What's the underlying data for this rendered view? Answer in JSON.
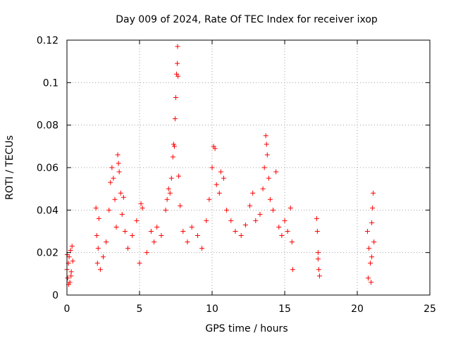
{
  "chart_data": {
    "type": "scatter",
    "title": "Day 009 of 2024, Rate Of TEC Index for receiver ixop",
    "xlabel": "GPS time / hours",
    "ylabel": "ROTI / TECUs",
    "xlim": [
      0,
      25
    ],
    "ylim": [
      0,
      0.12
    ],
    "xticks": [
      0,
      5,
      10,
      15,
      20,
      25
    ],
    "xtick_labels": [
      "0",
      "5",
      "10",
      "15",
      "20",
      "25"
    ],
    "yticks": [
      0,
      0.02,
      0.04,
      0.06,
      0.08,
      0.1,
      0.12
    ],
    "ytick_labels": [
      "0",
      "0.02",
      "0.04",
      "0.06",
      "0.08",
      "0.1",
      "0.12"
    ],
    "grid": true,
    "marker": "+",
    "color": "#ff0000",
    "series": [
      {
        "name": "ROTI",
        "points": [
          [
            0.0,
            0.012
          ],
          [
            0.05,
            0.008
          ],
          [
            0.1,
            0.015
          ],
          [
            0.15,
            0.018
          ],
          [
            0.2,
            0.006
          ],
          [
            0.25,
            0.021
          ],
          [
            0.3,
            0.011
          ],
          [
            0.35,
            0.023
          ],
          [
            0.4,
            0.016
          ],
          [
            0.02,
            0.019
          ],
          [
            0.12,
            0.005
          ],
          [
            0.28,
            0.009
          ],
          [
            2.0,
            0.041
          ],
          [
            2.05,
            0.028
          ],
          [
            2.1,
            0.015
          ],
          [
            2.15,
            0.022
          ],
          [
            2.2,
            0.036
          ],
          [
            2.3,
            0.012
          ],
          [
            2.5,
            0.018
          ],
          [
            2.7,
            0.025
          ],
          [
            2.9,
            0.04
          ],
          [
            3.0,
            0.053
          ],
          [
            3.1,
            0.06
          ],
          [
            3.2,
            0.055
          ],
          [
            3.3,
            0.045
          ],
          [
            3.4,
            0.032
          ],
          [
            3.5,
            0.066
          ],
          [
            3.55,
            0.062
          ],
          [
            3.6,
            0.058
          ],
          [
            3.7,
            0.048
          ],
          [
            3.8,
            0.038
          ],
          [
            3.9,
            0.046
          ],
          [
            4.0,
            0.03
          ],
          [
            4.2,
            0.022
          ],
          [
            4.5,
            0.028
          ],
          [
            4.8,
            0.035
          ],
          [
            5.0,
            0.015
          ],
          [
            5.1,
            0.043
          ],
          [
            5.2,
            0.041
          ],
          [
            5.5,
            0.02
          ],
          [
            5.8,
            0.03
          ],
          [
            6.0,
            0.025
          ],
          [
            6.2,
            0.032
          ],
          [
            6.5,
            0.028
          ],
          [
            6.8,
            0.04
          ],
          [
            6.9,
            0.045
          ],
          [
            7.0,
            0.05
          ],
          [
            7.1,
            0.048
          ],
          [
            7.2,
            0.055
          ],
          [
            7.3,
            0.065
          ],
          [
            7.35,
            0.071
          ],
          [
            7.4,
            0.07
          ],
          [
            7.45,
            0.083
          ],
          [
            7.5,
            0.093
          ],
          [
            7.55,
            0.104
          ],
          [
            7.6,
            0.109
          ],
          [
            7.62,
            0.117
          ],
          [
            7.65,
            0.103
          ],
          [
            7.7,
            0.056
          ],
          [
            7.8,
            0.042
          ],
          [
            8.0,
            0.03
          ],
          [
            8.3,
            0.025
          ],
          [
            8.6,
            0.032
          ],
          [
            9.0,
            0.028
          ],
          [
            9.3,
            0.022
          ],
          [
            9.6,
            0.035
          ],
          [
            9.8,
            0.045
          ],
          [
            10.0,
            0.06
          ],
          [
            10.1,
            0.07
          ],
          [
            10.2,
            0.069
          ],
          [
            10.3,
            0.052
          ],
          [
            10.5,
            0.048
          ],
          [
            10.6,
            0.058
          ],
          [
            10.8,
            0.055
          ],
          [
            11.0,
            0.04
          ],
          [
            11.3,
            0.035
          ],
          [
            11.6,
            0.03
          ],
          [
            12.0,
            0.028
          ],
          [
            12.3,
            0.033
          ],
          [
            12.6,
            0.042
          ],
          [
            12.8,
            0.048
          ],
          [
            13.0,
            0.035
          ],
          [
            13.3,
            0.038
          ],
          [
            13.5,
            0.05
          ],
          [
            13.6,
            0.06
          ],
          [
            13.7,
            0.075
          ],
          [
            13.75,
            0.071
          ],
          [
            13.8,
            0.066
          ],
          [
            13.9,
            0.055
          ],
          [
            14.0,
            0.045
          ],
          [
            14.2,
            0.04
          ],
          [
            14.4,
            0.058
          ],
          [
            14.6,
            0.032
          ],
          [
            14.8,
            0.028
          ],
          [
            15.0,
            0.035
          ],
          [
            15.2,
            0.03
          ],
          [
            15.4,
            0.041
          ],
          [
            15.5,
            0.025
          ],
          [
            15.55,
            0.012
          ],
          [
            17.2,
            0.036
          ],
          [
            17.25,
            0.03
          ],
          [
            17.3,
            0.02
          ],
          [
            17.35,
            0.012
          ],
          [
            17.4,
            0.009
          ],
          [
            17.3,
            0.017
          ],
          [
            20.7,
            0.03
          ],
          [
            20.8,
            0.022
          ],
          [
            20.9,
            0.015
          ],
          [
            21.0,
            0.034
          ],
          [
            21.05,
            0.041
          ],
          [
            21.1,
            0.048
          ],
          [
            21.15,
            0.025
          ],
          [
            20.75,
            0.008
          ],
          [
            20.95,
            0.006
          ],
          [
            21.0,
            0.018
          ]
        ]
      }
    ]
  }
}
